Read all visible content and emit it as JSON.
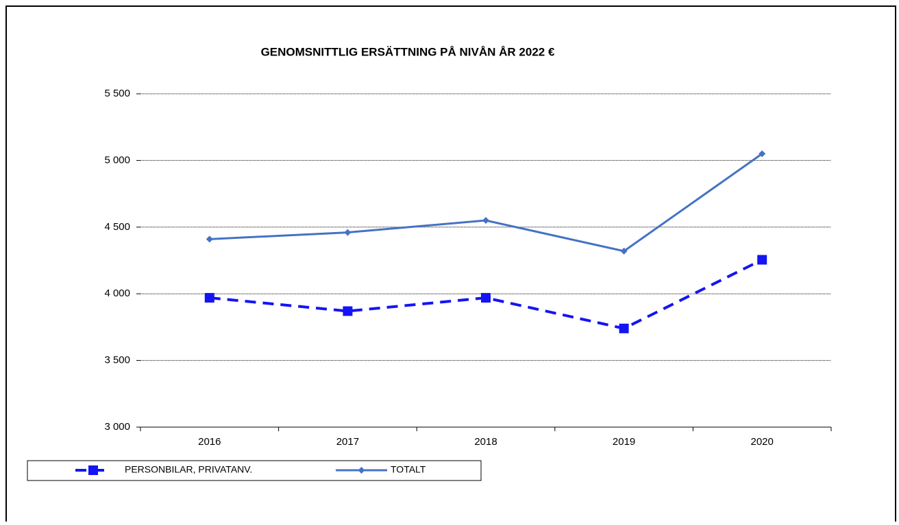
{
  "chart_data": {
    "type": "line",
    "title": "GENOMSNITTLIG ERSÄTTNING PÅ NIVÅN ÅR 2022 €",
    "categories": [
      "2016",
      "2017",
      "2018",
      "2019",
      "2020"
    ],
    "series": [
      {
        "name": "PERSONBILAR, PRIVATANV.",
        "color": "#1414f5",
        "values": [
          3970,
          3870,
          3970,
          3740,
          4255
        ]
      },
      {
        "name": "TOTALT",
        "color": "#4472c4",
        "values": [
          4410,
          4460,
          4550,
          4320,
          5050
        ]
      }
    ],
    "ylim": [
      3000,
      5500
    ],
    "yticks": [
      {
        "value": 3000,
        "label": "3 000"
      },
      {
        "value": 3500,
        "label": "3 500"
      },
      {
        "value": 4000,
        "label": "4 000"
      },
      {
        "value": 4500,
        "label": "4 500"
      },
      {
        "value": 5000,
        "label": "5 000"
      },
      {
        "value": 5500,
        "label": "5 500"
      }
    ],
    "grid": true,
    "legend": "bottom"
  }
}
